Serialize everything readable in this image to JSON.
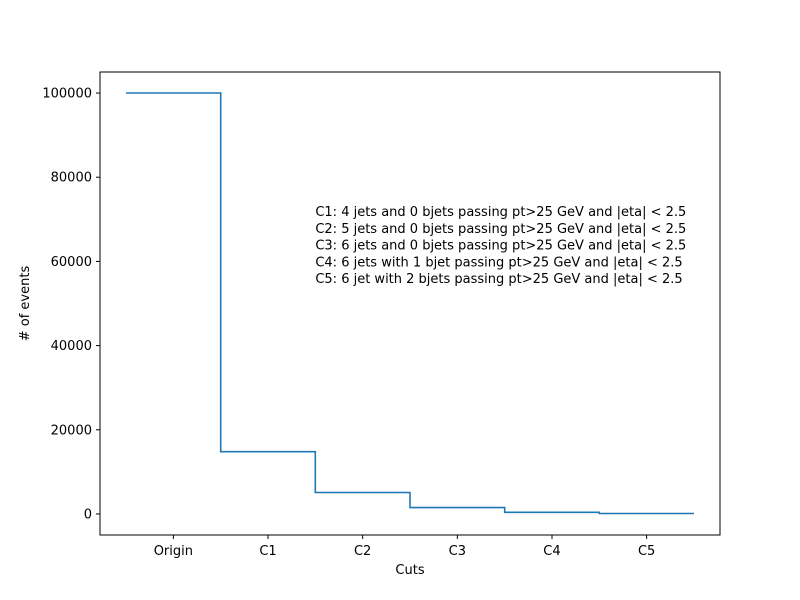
{
  "chart_data": {
    "type": "line",
    "step": true,
    "categories": [
      "Origin",
      "C1",
      "C2",
      "C3",
      "C4",
      "C5"
    ],
    "values": [
      100000,
      14800,
      5100,
      1500,
      400,
      100
    ],
    "xlabel": "Cuts",
    "ylabel": "# of events",
    "ylim": [
      -5000,
      105000
    ],
    "yticks": [
      0,
      20000,
      40000,
      60000,
      80000,
      100000
    ],
    "grid": false,
    "line_color": "#1f77b4",
    "annotation_lines": [
      "C1: 4 jets and 0 bjets passing pt>25 GeV and |eta| < 2.5",
      "C2: 5 jets and 0 bjets passing pt>25 GeV and |eta| < 2.5",
      "C3: 6 jets and 0 bjets passing pt>25 GeV and |eta| < 2.5",
      "C4: 6 jets with 1 bjet passing pt>25 GeV and |eta| < 2.5",
      "C5: 6 jet with 2 bjets passing pt>25 GeV and |eta| < 2.5"
    ]
  }
}
